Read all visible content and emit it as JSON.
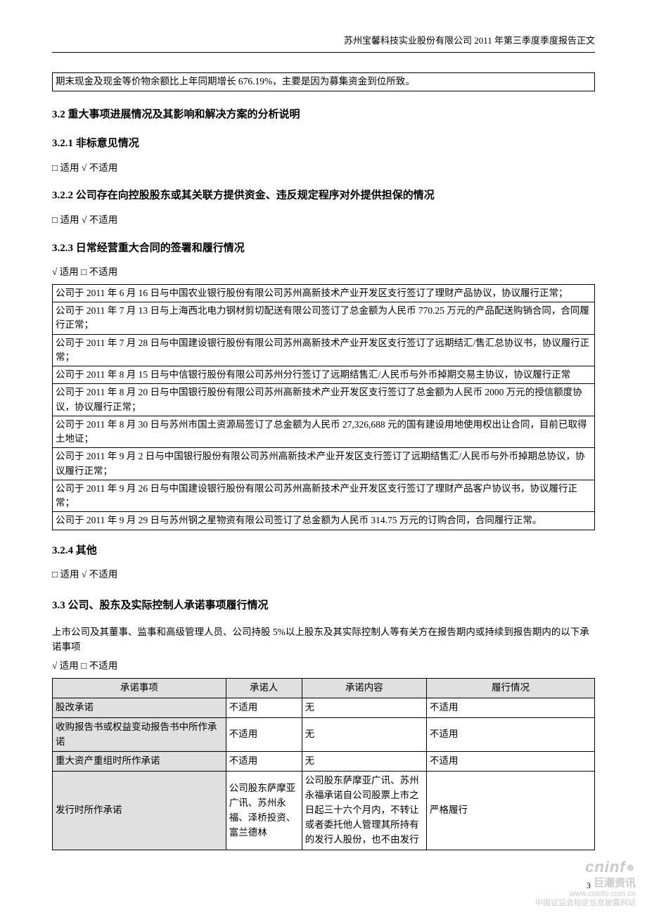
{
  "header": "苏州宝馨科技实业股份有限公司 2011 年第三季度季度报告正文",
  "box_top": "期末现金及现金等价物余额比上年同期增长 676.19%，主要是因为募集资金到位所致。",
  "s32": {
    "title": "3.2 重大事项进展情况及其影响和解决方案的分析说明",
    "s321": {
      "title": "3.2.1 非标意见情况",
      "check": "□ 适用  √ 不适用"
    },
    "s322": {
      "title": "3.2.2 公司存在向控股股东或其关联方提供资金、违反规定程序对外提供担保的情况",
      "check": "□ 适用  √ 不适用"
    },
    "s323": {
      "title": "3.2.3 日常经营重大合同的签署和履行情况",
      "check": "√ 适用  □ 不适用",
      "rows": [
        "公司于 2011 年 6 月 16 日与中国农业银行股份有限公司苏州高新技术产业开发区支行签订了理财产品协议，协议履行正常；",
        "公司于 2011 年 7 月 13 日与上海西北电力钢材剪切配送有限公司签订了总金额为人民币 770.25 万元的产品配送购销合同，合同履行正常；",
        "公司于 2011 年 7 月 28 日与中国建设银行股份有限公司苏州高新技术产业开发区支行签订了远期结汇/售汇总协议书，协议履行正常；",
        "公司于 2011 年 8 月 15 日与中信银行股份有限公司苏州分行签订了远期结售汇/人民币与外币掉期交易主协议，协议履行正常",
        "公司于 2011 年 8 月 20 日与中国银行股份有限公司苏州高新技术产业开发区支行签订了总金额为人民币 2000 万元的授信额度协议，协议履行正常；",
        "公司于 2011 年 8 月 30 日与苏州市国土资源局签订了总金额为人民币 27,326,688 元的国有建设用地使用权出让合同，目前已取得土地证；",
        "公司于 2011 年 9 月 2 日与中国银行股份有限公司苏州高新技术产业开发区支行签订了远期结售汇/人民币与外币掉期总协议，协议履行正常；",
        "公司于 2011 年 9 月 26 日与中国建设银行股份有限公司苏州高新技术产业开发区支行签订了理财产品客户协议书，协议履行正常；",
        "公司于 2011 年 9 月 29 日与苏州钢之星物资有限公司签订了总金额为人民币 314.75 万元的订购合同，合同履行正常。"
      ]
    },
    "s324": {
      "title": "3.2.4 其他",
      "check": "□ 适用  √ 不适用"
    }
  },
  "s33": {
    "title": "3.3 公司、股东及实际控制人承诺事项履行情况",
    "intro": "上市公司及其董事、监事和高级管理人员、公司持股 5%以上股东及其实际控制人等有关方在报告期内或持续到报告期内的以下承诺事项",
    "check": "√ 适用  □ 不适用",
    "columns": [
      "承诺事项",
      "承诺人",
      "承诺内容",
      "履行情况"
    ],
    "col_widths": [
      "32%",
      "14%",
      "23%",
      "31%"
    ],
    "rows": [
      [
        "股改承诺",
        "不适用",
        "无",
        "不适用"
      ],
      [
        "收购报告书或权益变动报告书中所作承诺",
        "不适用",
        "无",
        "不适用"
      ],
      [
        "重大资产重组时所作承诺",
        "不适用",
        "无",
        "不适用"
      ],
      [
        "发行时所作承诺",
        "公司股东萨摩亚广讯、苏州永福、泽桥投资、富兰德林",
        "公司股东萨摩亚广讯、苏州永福承诺自公司股票上市之日起三十六个月内，不转让或者委托他人管理其所持有的发行人股份，也不由发行",
        "严格履行"
      ]
    ]
  },
  "watermark": {
    "brand": "cninf",
    "cn": "巨潮资讯",
    "url": "www.cninfo.com.cn",
    "sub": "中国证监会指定信息披露网站"
  },
  "page_num": "3"
}
